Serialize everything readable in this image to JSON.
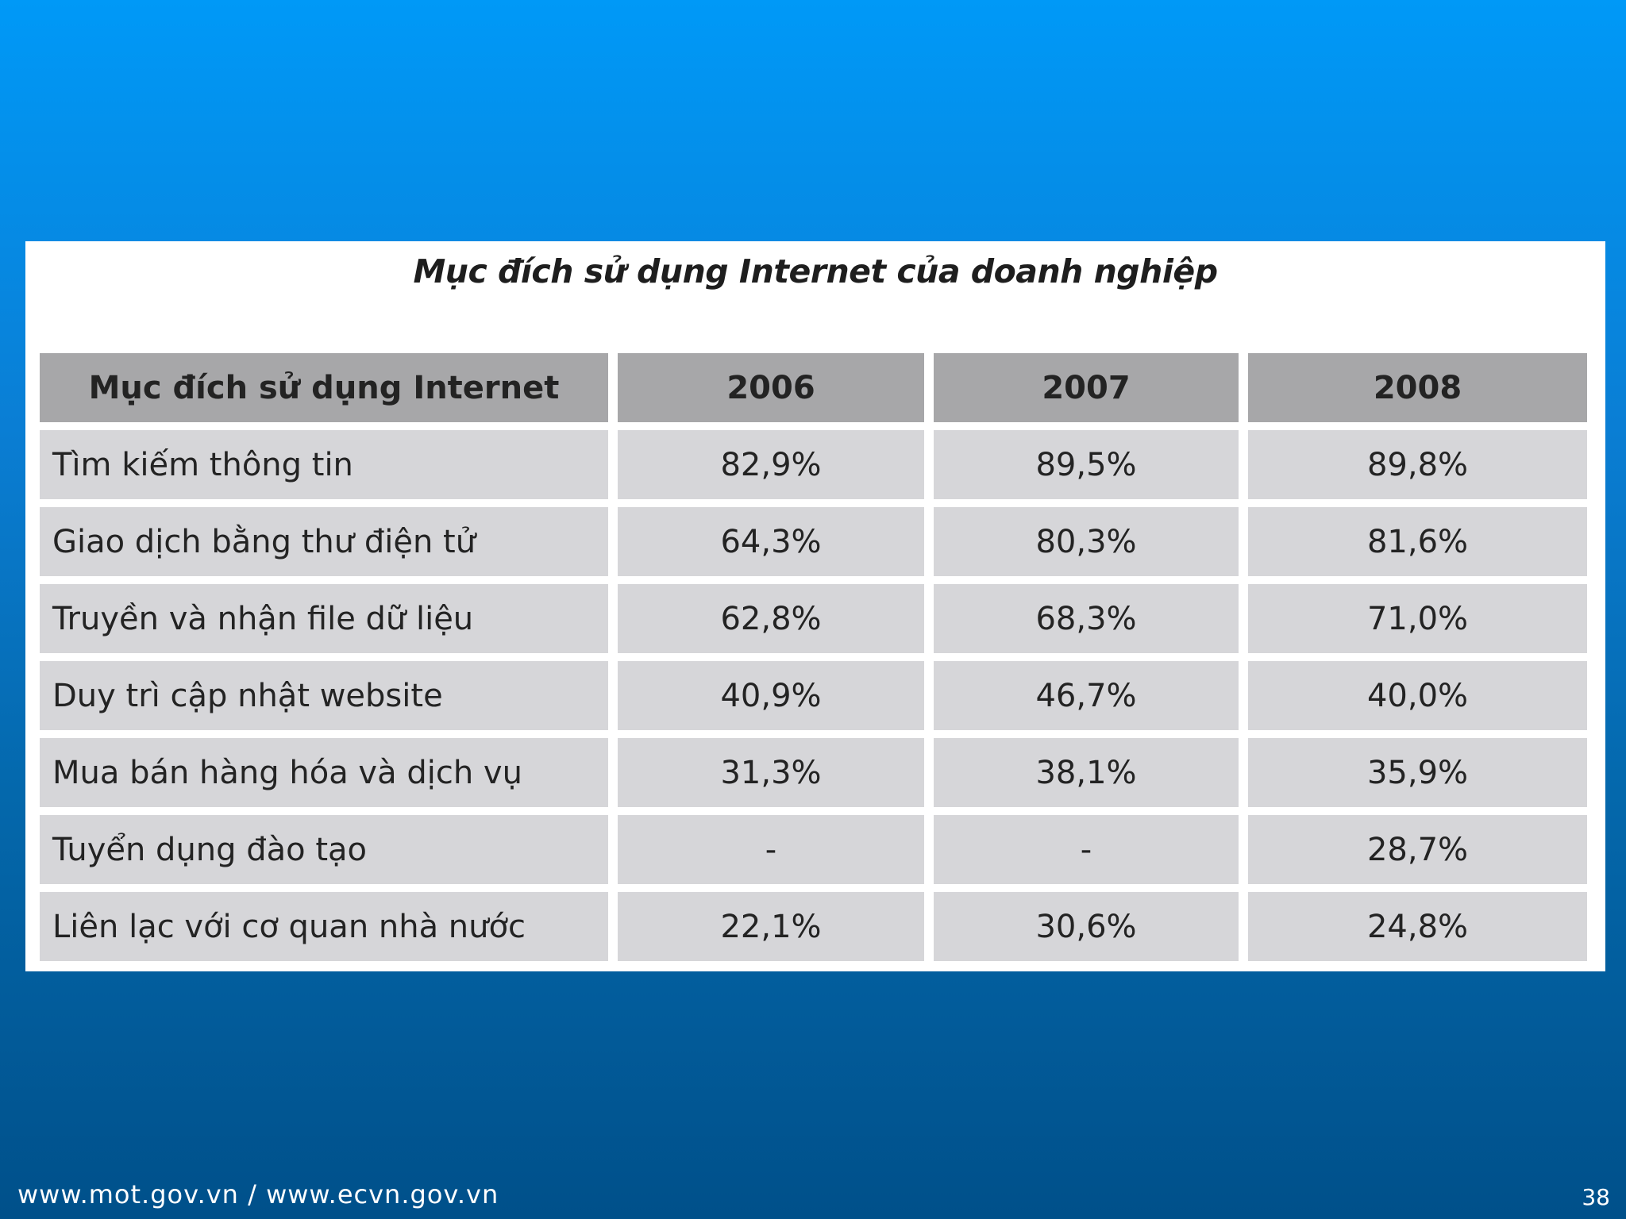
{
  "chart_data": {
    "type": "table",
    "title": "Mục đích sử dụng Internet của doanh nghiệp",
    "columns": [
      "Mục đích sử dụng Internet",
      "2006",
      "2007",
      "2008"
    ],
    "rows": [
      {
        "label": "Tìm kiếm thông tin",
        "values": [
          "82,9%",
          "89,5%",
          "89,8%"
        ]
      },
      {
        "label": "Giao dịch bằng thư điện tử",
        "values": [
          "64,3%",
          "80,3%",
          "81,6%"
        ]
      },
      {
        "label": "Truyền và nhận file dữ liệu",
        "values": [
          "62,8%",
          "68,3%",
          "71,0%"
        ]
      },
      {
        "label": "Duy trì cập nhật website",
        "values": [
          "40,9%",
          "46,7%",
          "40,0%"
        ]
      },
      {
        "label": "Mua bán hàng hóa và dịch vụ",
        "values": [
          "31,3%",
          "38,1%",
          "35,9%"
        ]
      },
      {
        "label": "Tuyển dụng đào tạo",
        "values": [
          "-",
          "-",
          "28,7%"
        ]
      },
      {
        "label": "Liên lạc với cơ quan nhà nước",
        "values": [
          "22,1%",
          "30,6%",
          "24,8%"
        ]
      }
    ]
  },
  "footer": {
    "url": "www.mot.gov.vn / www.ecvn.gov.vn",
    "page_number": "38"
  },
  "colors": {
    "background_top": "#0099f7",
    "background_bottom": "#00508a",
    "header_cell": "#a7a7a9",
    "body_cell": "#d6d6d9"
  }
}
